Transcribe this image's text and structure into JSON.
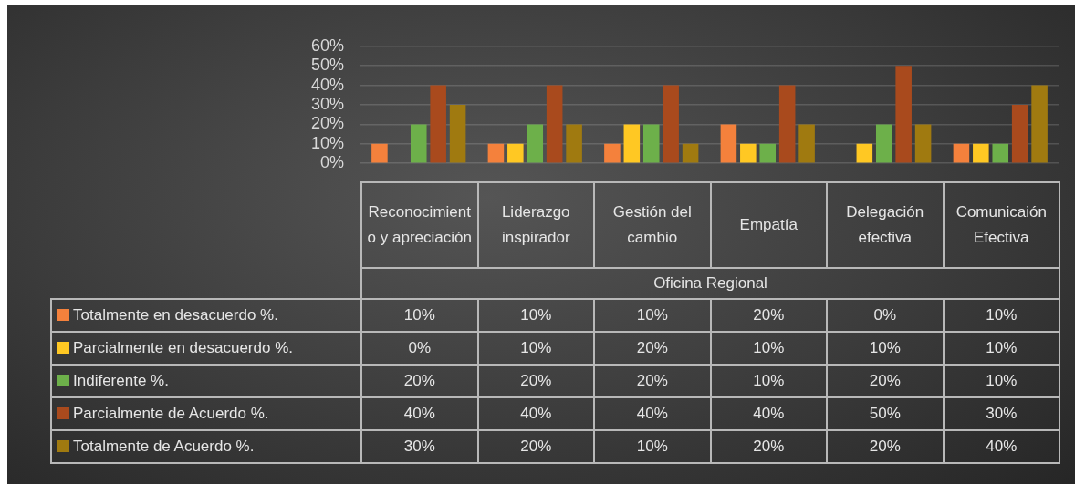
{
  "chart_data": {
    "type": "bar",
    "xlabel": "Oficina Regional",
    "categories": [
      "Reconocimiento y apreciación",
      "Liderazgo inspirador",
      "Gestión del cambio",
      "Empatía",
      "Delegación efectiva",
      "Comunicaión Efectiva"
    ],
    "series": [
      {
        "name": "Totalmente en desacuerdo %.",
        "color": "#f4813c",
        "values": [
          10,
          10,
          10,
          20,
          0,
          10
        ],
        "value_labels": [
          "10%",
          "10%",
          "10%",
          "20%",
          "0%",
          "10%"
        ]
      },
      {
        "name": "Parcialmente en desacuerdo %.",
        "color": "#ffc823",
        "values": [
          0,
          10,
          20,
          10,
          10,
          10
        ],
        "value_labels": [
          "0%",
          "10%",
          "20%",
          "10%",
          "10%",
          "10%"
        ]
      },
      {
        "name": "Indiferente %.",
        "color": "#6db04a",
        "values": [
          20,
          20,
          20,
          10,
          20,
          10
        ],
        "value_labels": [
          "20%",
          "20%",
          "20%",
          "10%",
          "20%",
          "10%"
        ]
      },
      {
        "name": "Parcialmente de Acuerdo %.",
        "color": "#a94a1d",
        "values": [
          40,
          40,
          40,
          40,
          50,
          30
        ],
        "value_labels": [
          "40%",
          "40%",
          "40%",
          "40%",
          "50%",
          "30%"
        ]
      },
      {
        "name": "Totalmente de Acuerdo %.",
        "color": "#a07a10",
        "values": [
          30,
          20,
          10,
          20,
          20,
          40
        ],
        "value_labels": [
          "30%",
          "20%",
          "10%",
          "20%",
          "20%",
          "40%"
        ]
      }
    ],
    "ylim": [
      0,
      60
    ],
    "yticks": [
      {
        "value": 0,
        "label": "0%"
      },
      {
        "value": 10,
        "label": "10%"
      },
      {
        "value": 20,
        "label": "20%"
      },
      {
        "value": 30,
        "label": "30%"
      },
      {
        "value": 40,
        "label": "40%"
      },
      {
        "value": 50,
        "label": "50%"
      },
      {
        "value": 60,
        "label": "60%"
      }
    ],
    "grid": "y",
    "legend": "bottom"
  }
}
